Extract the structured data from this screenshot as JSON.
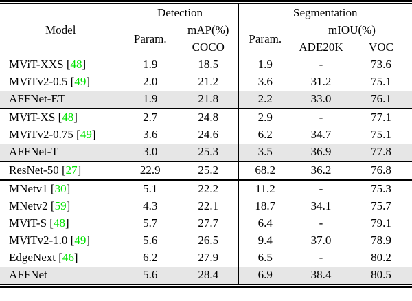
{
  "table": {
    "header": {
      "model": "Model",
      "detection": "Detection",
      "segmentation": "Segmentation",
      "det_param": "Param.",
      "det_map": "mAP(%)",
      "det_coco": "COCO",
      "seg_param": "Param.",
      "seg_miou": "mIOU(%)",
      "seg_ade20k": "ADE20K",
      "seg_voc": "VOC"
    },
    "columns": [
      "Model",
      "Detection Param.",
      "Detection mAP(%) COCO",
      "Segmentation Param.",
      "Segmentation mIOU(%) ADE20K",
      "Segmentation mIOU(%) VOC"
    ],
    "groups": [
      {
        "rows": [
          {
            "model": "MViT-XXS",
            "cite": "48",
            "highlight": false,
            "values": [
              "1.9",
              "18.5",
              "1.9",
              "-",
              "73.6"
            ]
          },
          {
            "model": "MViTv2-0.5",
            "cite": "49",
            "highlight": false,
            "values": [
              "2.0",
              "21.2",
              "3.6",
              "31.2",
              "75.1"
            ]
          },
          {
            "model": "AFFNet-ET",
            "cite": "",
            "highlight": true,
            "values": [
              "1.9",
              "21.8",
              "2.2",
              "33.0",
              "76.1"
            ]
          }
        ]
      },
      {
        "rows": [
          {
            "model": "MViT-XS",
            "cite": "48",
            "highlight": false,
            "values": [
              "2.7",
              "24.8",
              "2.9",
              "-",
              "77.1"
            ]
          },
          {
            "model": "MViTv2-0.75",
            "cite": "49",
            "highlight": false,
            "values": [
              "3.6",
              "24.6",
              "6.2",
              "34.7",
              "75.1"
            ]
          },
          {
            "model": "AFFNet-T",
            "cite": "",
            "highlight": true,
            "values": [
              "3.0",
              "25.3",
              "3.5",
              "36.9",
              "77.8"
            ]
          }
        ]
      },
      {
        "rows": [
          {
            "model": "ResNet-50",
            "cite": "27",
            "highlight": false,
            "values": [
              "22.9",
              "25.2",
              "68.2",
              "36.2",
              "76.8"
            ]
          }
        ]
      },
      {
        "rows": [
          {
            "model": "MNetv1",
            "cite": "30",
            "highlight": false,
            "values": [
              "5.1",
              "22.2",
              "11.2",
              "-",
              "75.3"
            ]
          },
          {
            "model": "MNetv2",
            "cite": "59",
            "highlight": false,
            "values": [
              "4.3",
              "22.1",
              "18.7",
              "34.1",
              "75.7"
            ]
          },
          {
            "model": "MViT-S",
            "cite": "48",
            "highlight": false,
            "values": [
              "5.7",
              "27.7",
              "6.4",
              "-",
              "79.1"
            ]
          },
          {
            "model": "MViTv2-1.0",
            "cite": "49",
            "highlight": false,
            "values": [
              "5.6",
              "26.5",
              "9.4",
              "37.0",
              "78.9"
            ]
          },
          {
            "model": "EdgeNext",
            "cite": "46",
            "highlight": false,
            "values": [
              "6.2",
              "27.9",
              "6.5",
              "-",
              "80.2"
            ]
          },
          {
            "model": "AFFNet",
            "cite": "",
            "highlight": true,
            "values": [
              "5.6",
              "28.4",
              "6.9",
              "38.4",
              "80.5"
            ]
          }
        ]
      }
    ]
  },
  "colors": {
    "citation_green": "#00e400",
    "highlight_gray": "#e6e6e6",
    "rule_black": "#000000"
  }
}
